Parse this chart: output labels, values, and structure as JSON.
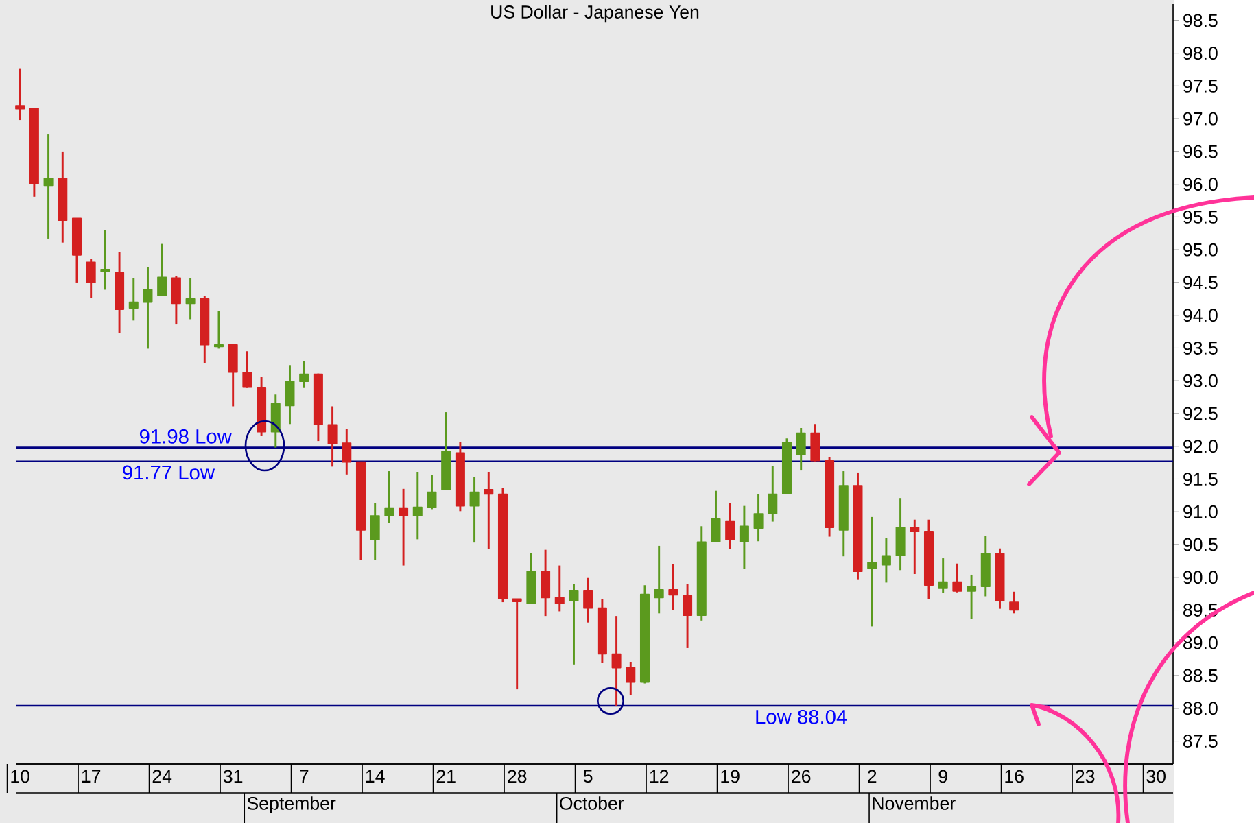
{
  "chart_data": {
    "type": "candlestick",
    "title": "US Dollar - Japanese Yen",
    "categories": [
      "10",
      null,
      null,
      null,
      null,
      "17",
      null,
      null,
      null,
      null,
      "24",
      null,
      null,
      null,
      null,
      "31",
      null,
      null,
      null,
      null,
      "7",
      null,
      null,
      null,
      null,
      "14",
      null,
      null,
      null,
      null,
      "21",
      null,
      null,
      null,
      null,
      "28",
      null,
      null,
      null,
      null,
      "5",
      null,
      null,
      null,
      null,
      "12",
      null,
      null,
      null,
      null,
      "19",
      null,
      null,
      null,
      null,
      "26",
      null,
      null,
      null,
      null,
      "2",
      null,
      null,
      null,
      null,
      "9",
      null,
      null,
      null,
      null,
      "16",
      null,
      null,
      null,
      null,
      "23",
      null,
      null,
      null,
      null,
      "30",
      null
    ],
    "ohlc": [
      [
        97.2,
        97.77,
        96.98,
        97.15
      ],
      [
        97.16,
        97.16,
        95.81,
        96.01
      ],
      [
        95.98,
        96.76,
        95.17,
        96.09
      ],
      [
        96.09,
        96.5,
        95.11,
        95.45
      ],
      [
        95.48,
        95.48,
        94.5,
        94.92
      ],
      [
        94.81,
        94.86,
        94.26,
        94.5
      ],
      [
        94.67,
        95.3,
        94.39,
        94.7
      ],
      [
        94.65,
        94.97,
        93.73,
        94.09
      ],
      [
        94.11,
        94.57,
        93.92,
        94.2
      ],
      [
        94.2,
        94.74,
        93.49,
        94.39
      ],
      [
        94.3,
        95.09,
        94.3,
        94.58
      ],
      [
        94.57,
        94.6,
        93.86,
        94.18
      ],
      [
        94.18,
        94.57,
        93.94,
        94.25
      ],
      [
        94.25,
        94.29,
        93.27,
        93.55
      ],
      [
        93.52,
        94.07,
        93.49,
        93.55
      ],
      [
        93.55,
        93.56,
        92.61,
        93.13
      ],
      [
        93.13,
        93.45,
        92.89,
        92.9
      ],
      [
        92.89,
        93.06,
        92.16,
        92.22
      ],
      [
        92.22,
        92.79,
        91.98,
        92.65
      ],
      [
        92.62,
        93.24,
        92.34,
        92.99
      ],
      [
        92.99,
        93.3,
        92.89,
        93.1
      ],
      [
        93.1,
        93.11,
        92.08,
        92.33
      ],
      [
        92.33,
        92.61,
        91.69,
        92.04
      ],
      [
        92.05,
        92.26,
        91.57,
        91.76
      ],
      [
        91.76,
        91.76,
        90.27,
        90.72
      ],
      [
        90.57,
        91.13,
        90.27,
        90.94
      ],
      [
        90.94,
        91.62,
        90.83,
        91.06
      ],
      [
        91.06,
        91.35,
        90.18,
        90.94
      ],
      [
        90.94,
        91.61,
        90.58,
        91.07
      ],
      [
        91.07,
        91.56,
        91.04,
        91.3
      ],
      [
        91.34,
        92.52,
        91.34,
        91.92
      ],
      [
        91.9,
        92.06,
        91.01,
        91.09
      ],
      [
        91.09,
        91.53,
        90.53,
        91.3
      ],
      [
        91.34,
        91.61,
        90.43,
        91.27
      ],
      [
        91.27,
        91.36,
        89.62,
        89.67
      ],
      [
        89.67,
        89.67,
        88.29,
        89.63
      ],
      [
        89.6,
        90.37,
        89.6,
        90.09
      ],
      [
        90.09,
        90.42,
        89.41,
        89.69
      ],
      [
        89.69,
        90.18,
        89.48,
        89.6
      ],
      [
        89.64,
        89.9,
        88.67,
        89.8
      ],
      [
        89.8,
        89.99,
        89.31,
        89.53
      ],
      [
        89.53,
        89.67,
        88.69,
        88.83
      ],
      [
        88.83,
        89.41,
        88.04,
        88.62
      ],
      [
        88.62,
        88.71,
        88.2,
        88.4
      ],
      [
        88.4,
        89.88,
        88.38,
        89.74
      ],
      [
        89.69,
        90.48,
        89.45,
        89.81
      ],
      [
        89.81,
        90.2,
        89.5,
        89.73
      ],
      [
        89.72,
        89.9,
        88.92,
        89.42
      ],
      [
        89.42,
        90.78,
        89.34,
        90.54
      ],
      [
        90.54,
        91.32,
        90.54,
        90.89
      ],
      [
        90.86,
        91.13,
        90.43,
        90.57
      ],
      [
        90.54,
        91.09,
        90.13,
        90.78
      ],
      [
        90.75,
        91.27,
        90.55,
        90.97
      ],
      [
        90.97,
        91.7,
        90.85,
        91.27
      ],
      [
        91.28,
        92.12,
        91.28,
        92.06
      ],
      [
        91.87,
        92.28,
        91.63,
        92.2
      ],
      [
        92.2,
        92.34,
        91.77,
        91.78
      ],
      [
        91.78,
        91.83,
        90.62,
        90.76
      ],
      [
        90.72,
        91.62,
        90.32,
        91.4
      ],
      [
        91.4,
        91.6,
        89.97,
        90.09
      ],
      [
        90.14,
        90.92,
        89.25,
        90.23
      ],
      [
        90.19,
        90.6,
        89.92,
        90.33
      ],
      [
        90.33,
        91.21,
        90.11,
        90.76
      ],
      [
        90.76,
        90.88,
        90.05,
        90.7
      ],
      [
        90.7,
        90.88,
        89.67,
        89.88
      ],
      [
        89.83,
        90.29,
        89.76,
        89.93
      ],
      [
        89.93,
        90.21,
        89.77,
        89.79
      ],
      [
        89.79,
        90.04,
        89.36,
        89.86
      ],
      [
        89.86,
        90.63,
        89.71,
        90.36
      ],
      [
        90.36,
        90.44,
        89.52,
        89.64
      ],
      [
        89.62,
        89.78,
        89.45,
        89.5
      ],
      null,
      null,
      null,
      null,
      null,
      null,
      null,
      null,
      null,
      null,
      null
    ],
    "colors": [
      "#d42020",
      "#d42020",
      "#5b9a1e",
      "#d42020",
      "#d42020",
      "#d42020",
      "#5b9a1e",
      "#d42020",
      "#5b9a1e",
      "#5b9a1e",
      "#5b9a1e",
      "#d42020",
      "#5b9a1e",
      "#d42020",
      "#5b9a1e",
      "#d42020",
      "#d42020",
      "#d42020",
      "#5b9a1e",
      "#5b9a1e",
      "#5b9a1e",
      "#d42020",
      "#d42020",
      "#d42020",
      "#d42020",
      "#5b9a1e",
      "#5b9a1e",
      "#d42020",
      "#5b9a1e",
      "#5b9a1e",
      "#5b9a1e",
      "#d42020",
      "#5b9a1e",
      "#d42020",
      "#d42020",
      "#d42020",
      "#5b9a1e",
      "#d42020",
      "#d42020",
      "#5b9a1e",
      "#d42020",
      "#d42020",
      "#d42020",
      "#d42020",
      "#5b9a1e",
      "#5b9a1e",
      "#d42020",
      "#d42020",
      "#5b9a1e",
      "#5b9a1e",
      "#d42020",
      "#5b9a1e",
      "#5b9a1e",
      "#5b9a1e",
      "#5b9a1e",
      "#5b9a1e",
      "#d42020",
      "#d42020",
      "#5b9a1e",
      "#d42020",
      "#5b9a1e",
      "#5b9a1e",
      "#5b9a1e",
      "#d42020",
      "#d42020",
      "#5b9a1e",
      "#d42020",
      "#5b9a1e",
      "#5b9a1e",
      "#d42020",
      "#d42020",
      null,
      null,
      null,
      null,
      null,
      null,
      null,
      null,
      null,
      null,
      null
    ],
    "ylim": [
      87.15,
      98.75
    ],
    "yticks": [
      87.5,
      {
        "value": 88,
        "label": "88.0"
      },
      88.5,
      {
        "value": 89,
        "label": "89.0"
      },
      89.5,
      {
        "value": 90,
        "label": "90.0"
      },
      90.5,
      {
        "value": 91,
        "label": "91.0"
      },
      91.5,
      {
        "value": 92,
        "label": "92.0"
      },
      92.5,
      {
        "value": 93,
        "label": "93.0"
      },
      93.5,
      {
        "value": 94,
        "label": "94.0"
      },
      94.5,
      {
        "value": 95,
        "label": "95.0"
      },
      95.5,
      {
        "value": 96,
        "label": "96.0"
      },
      96.5,
      {
        "value": 97,
        "label": "97.0"
      },
      97.5,
      {
        "value": 98,
        "label": "98.0"
      },
      98.5
    ],
    "ref_lines": [
      {
        "axis": "y",
        "value": 91.98,
        "label": "91.98 Low",
        "color": "#000080"
      },
      {
        "axis": "y",
        "value": 91.77,
        "label": "91.77 Low",
        "color": "#000080"
      },
      {
        "axis": "y",
        "value": 88.04,
        "label": "Low 88.04",
        "color": "#000080"
      }
    ],
    "annotations": [
      "September",
      "October",
      "November"
    ]
  }
}
